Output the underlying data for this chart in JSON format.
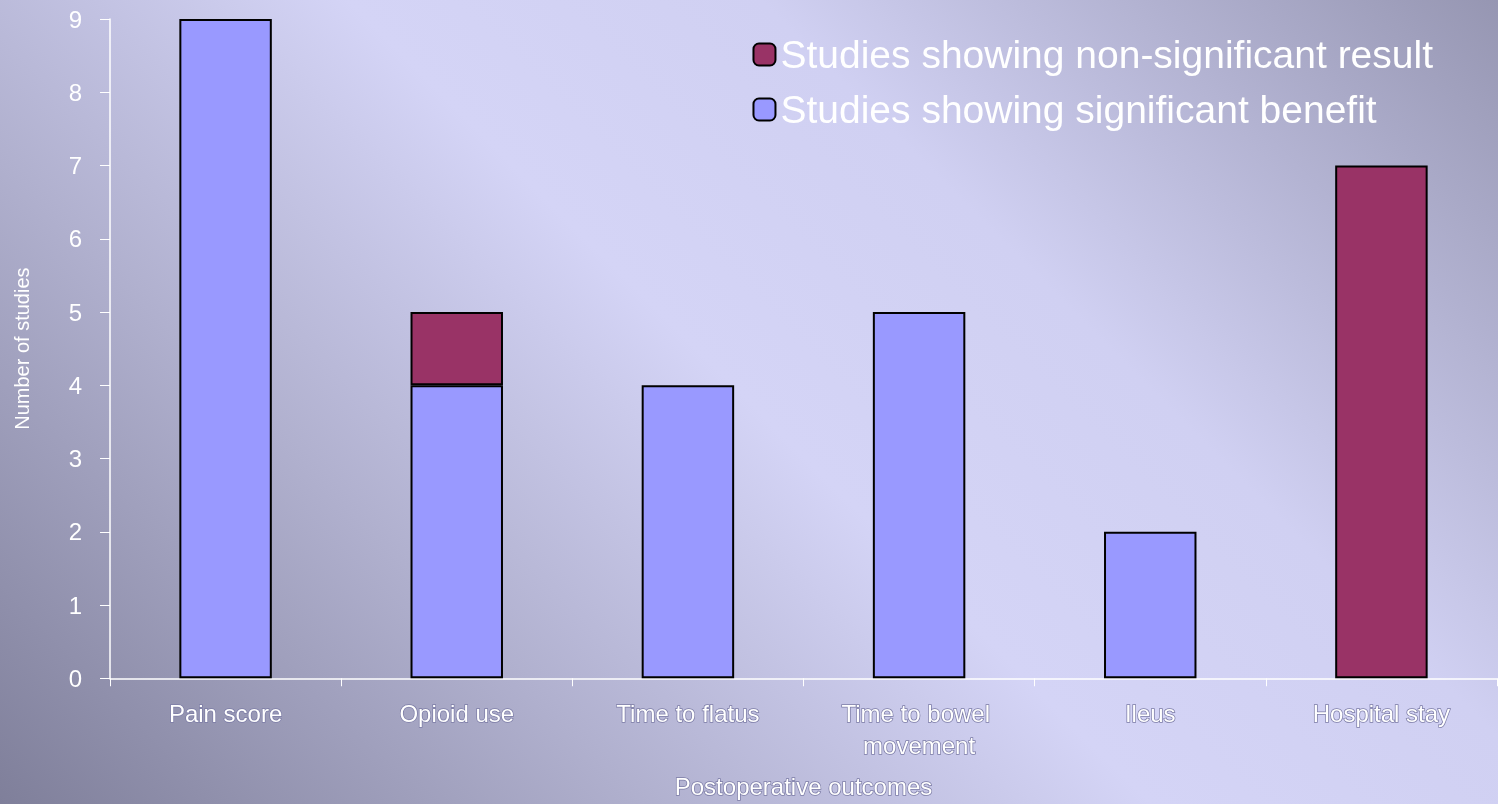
{
  "chart_data": {
    "type": "bar",
    "stacked": true,
    "xlabel": "Postoperative outcomes",
    "ylabel": "Number of studies",
    "categories": [
      "Pain score",
      "Opioid use",
      "Time to flatus",
      "Time to bowel movement",
      "Ileus",
      "Hospital stay"
    ],
    "series": [
      {
        "name": "Studies showing significant benefit",
        "color": "#9999ff",
        "values": [
          9,
          4,
          4,
          5,
          2,
          null
        ]
      },
      {
        "name": "Studies showing non-significant result",
        "color": "#993366",
        "values": [
          null,
          1,
          null,
          null,
          null,
          7
        ]
      }
    ],
    "ylim": [
      0,
      9
    ],
    "yticks": [
      0,
      1,
      2,
      3,
      4,
      5,
      6,
      7,
      8,
      9
    ],
    "legend": "top right"
  }
}
